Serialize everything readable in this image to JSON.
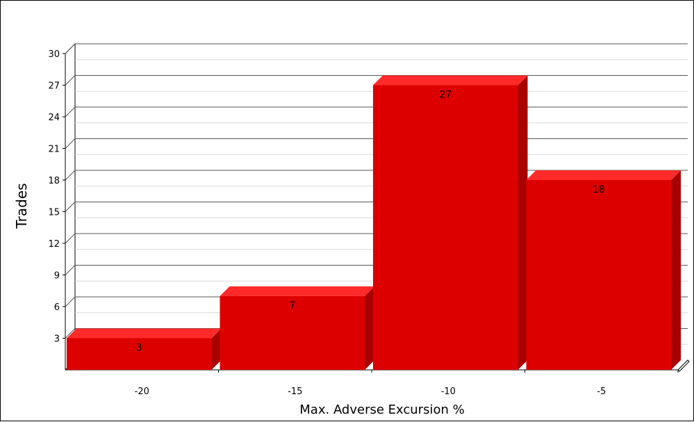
{
  "chart_data": {
    "type": "bar",
    "categories": [
      "-20",
      "-15",
      "-10",
      "-5"
    ],
    "values": [
      3,
      7,
      27,
      18
    ],
    "xlabel": "Max. Adverse Excursion %",
    "ylabel": "Trades",
    "ylim": [
      0,
      30
    ],
    "yticks": [
      3,
      6,
      9,
      12,
      15,
      18,
      21,
      24,
      27,
      30
    ],
    "grid": true,
    "three_d": true,
    "bar_color": "#dd0000",
    "bar_top_color": "#ff2a2a",
    "bar_side_color": "#a80000"
  }
}
